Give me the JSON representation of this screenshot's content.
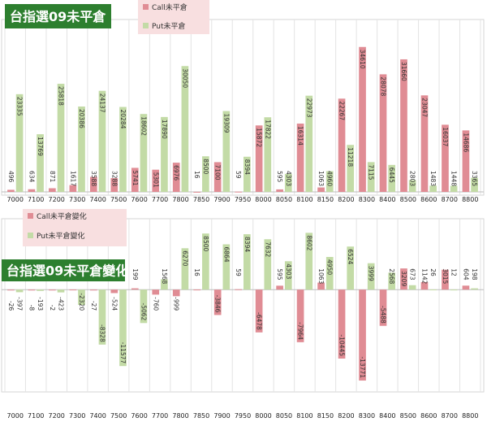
{
  "chart_data": [
    {
      "type": "bar",
      "title": "台指選09未平倉",
      "categories": [
        "7000",
        "7100",
        "7200",
        "7300",
        "7400",
        "7500",
        "7600",
        "7700",
        "7800",
        "7850",
        "7900",
        "7950",
        "8000",
        "8050",
        "8100",
        "8150",
        "8200",
        "8300",
        "8400",
        "8500",
        "8600",
        "8700",
        "8800"
      ],
      "series": [
        {
          "name": "Call未平倉",
          "color": "#e08c94",
          "values": [
            496,
            634,
            871,
            1617,
            3588,
            3288,
            5741,
            5301,
            6976,
            16,
            7100,
            59,
            15872,
            595,
            16314,
            1063,
            22267,
            34610,
            28078,
            31660,
            23047,
            16037,
            14686
          ]
        },
        {
          "name": "Put未平倉",
          "color": "#c3dba6",
          "values": [
            23335,
            13769,
            25818,
            20386,
            24137,
            20284,
            18602,
            17890,
            30050,
            8500,
            19309,
            8394,
            17822,
            4303,
            22973,
            4960,
            11218,
            7115,
            6445,
            2803,
            1483,
            1448,
            3365
          ]
        }
      ],
      "ylim": [
        0,
        40000
      ],
      "grid": true,
      "legend": "top"
    },
    {
      "type": "bar",
      "title": "台指選09未平倉變化",
      "categories": [
        "7000",
        "7100",
        "7200",
        "7300",
        "7400",
        "7500",
        "7600",
        "7700",
        "7800",
        "7850",
        "7900",
        "7950",
        "8000",
        "8050",
        "8100",
        "8150",
        "8200",
        "8300",
        "8400",
        "8500",
        "8600",
        "8700",
        "8800"
      ],
      "series": [
        {
          "name": "Call未平倉變化",
          "color": "#e08c94",
          "values": [
            -26,
            -8,
            -2,
            16,
            -27,
            -524,
            199,
            -760,
            -999,
            16,
            -3846,
            59,
            -6478,
            595,
            -7964,
            1063,
            -10445,
            -13771,
            -5488,
            3209,
            1142,
            3015,
            604
          ]
        },
        {
          "name": "Put未平倉變化",
          "color": "#c3dba6",
          "values": [
            -397,
            -193,
            -423,
            -2320,
            -8328,
            -11577,
            -5062,
            1568,
            6270,
            8500,
            6864,
            8394,
            7632,
            4303,
            8602,
            4950,
            6524,
            3999,
            2568,
            673,
            26,
            12,
            198
          ]
        }
      ],
      "ylim": [
        -15000,
        10000
      ],
      "grid": true,
      "legend": "top-left"
    }
  ]
}
